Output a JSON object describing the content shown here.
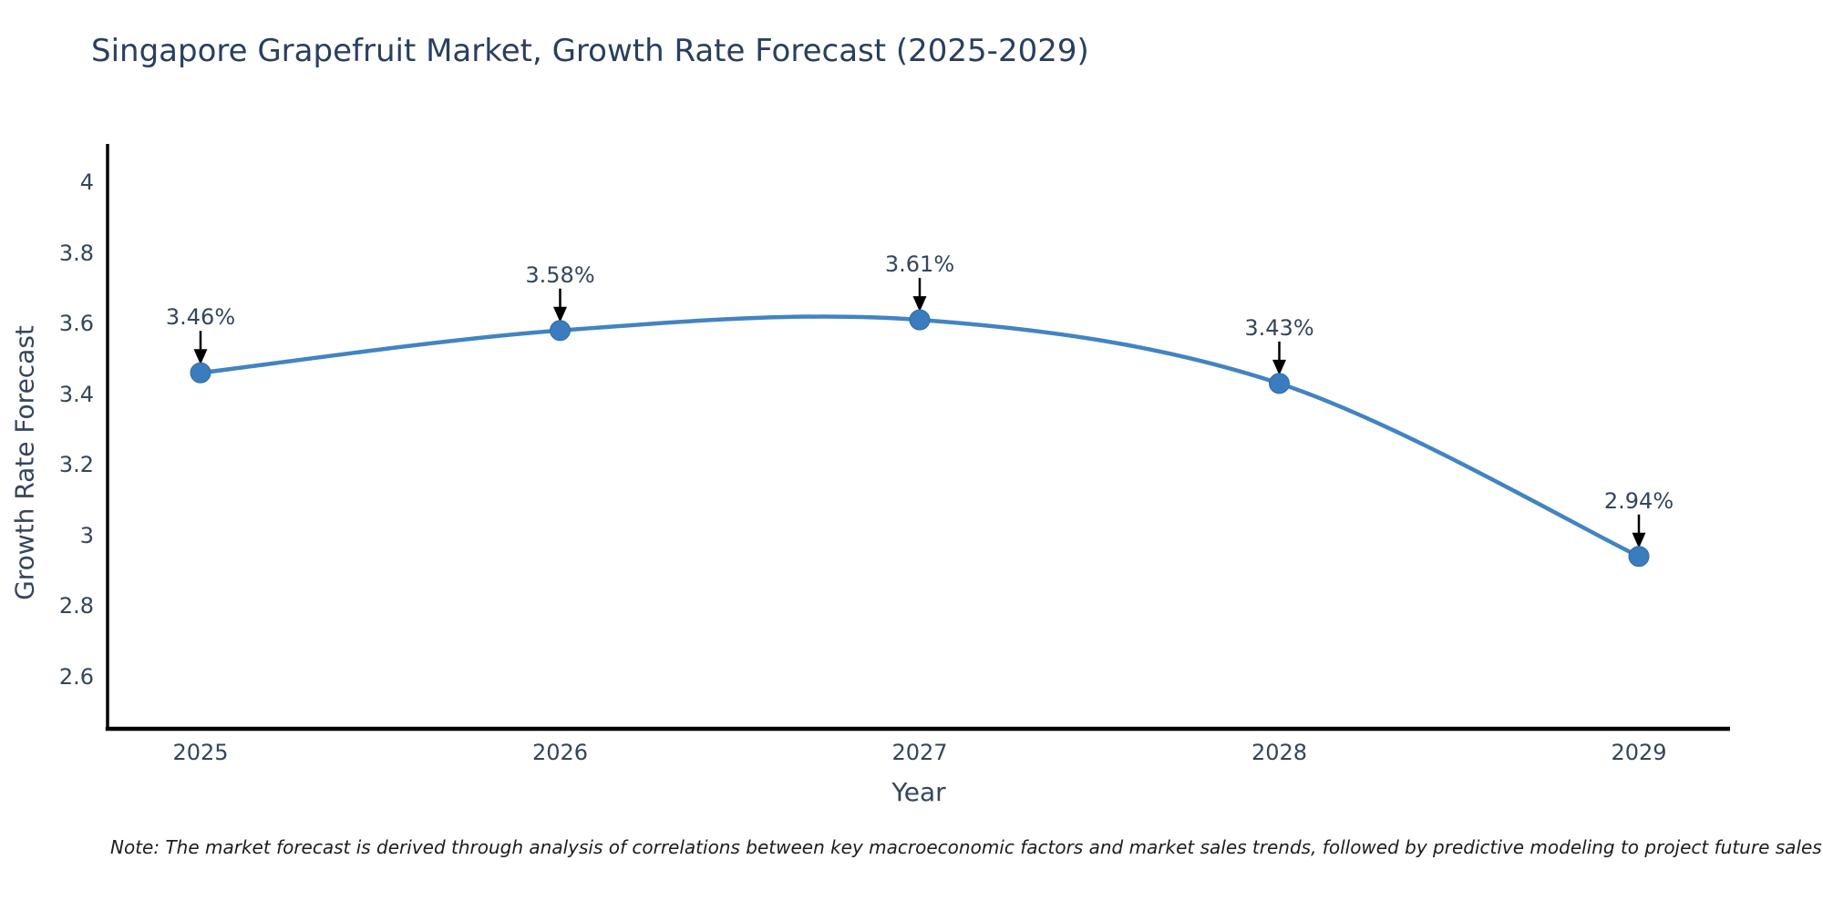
{
  "title": "Singapore Grapefruit Market, Growth Rate Forecast (2025-2029)",
  "note": "Note: The market forecast is derived through analysis of correlations between key macroeconomic factors and market sales trends, followed by predictive modeling to project future sales",
  "chart_data": {
    "type": "line",
    "title": "Singapore Grapefruit Market, Growth Rate Forecast (2025-2029)",
    "xlabel": "Year",
    "ylabel": "Growth Rate Forecast",
    "x": [
      2025,
      2026,
      2027,
      2028,
      2029
    ],
    "values": [
      3.46,
      3.58,
      3.61,
      3.43,
      2.94
    ],
    "point_labels": [
      "3.46%",
      "3.58%",
      "3.61%",
      "3.43%",
      "2.94%"
    ],
    "x_tick_labels": [
      "2025",
      "2026",
      "2027",
      "2028",
      "2029"
    ],
    "y_ticks": [
      4,
      3.8,
      3.6,
      3.4,
      3.2,
      3,
      2.8,
      2.6
    ],
    "y_tick_labels": [
      "4",
      "3.8",
      "3.6",
      "3.4",
      "3.2",
      "3",
      "2.8",
      "2.6"
    ],
    "ylim": [
      2.44,
      4.1
    ],
    "line_shape": "spline",
    "grid": false,
    "legend": false,
    "annotations": "black down arrows from each value label to its data point",
    "colors": {
      "line": "#4284c2",
      "marker": "#3a7cbd",
      "marker_edge": "#2e6ca8",
      "arrow": "#000000",
      "axis": "#000000",
      "tick_text": "#34455c",
      "title_text": "#2a3f5f",
      "background": "#ffffff"
    }
  }
}
